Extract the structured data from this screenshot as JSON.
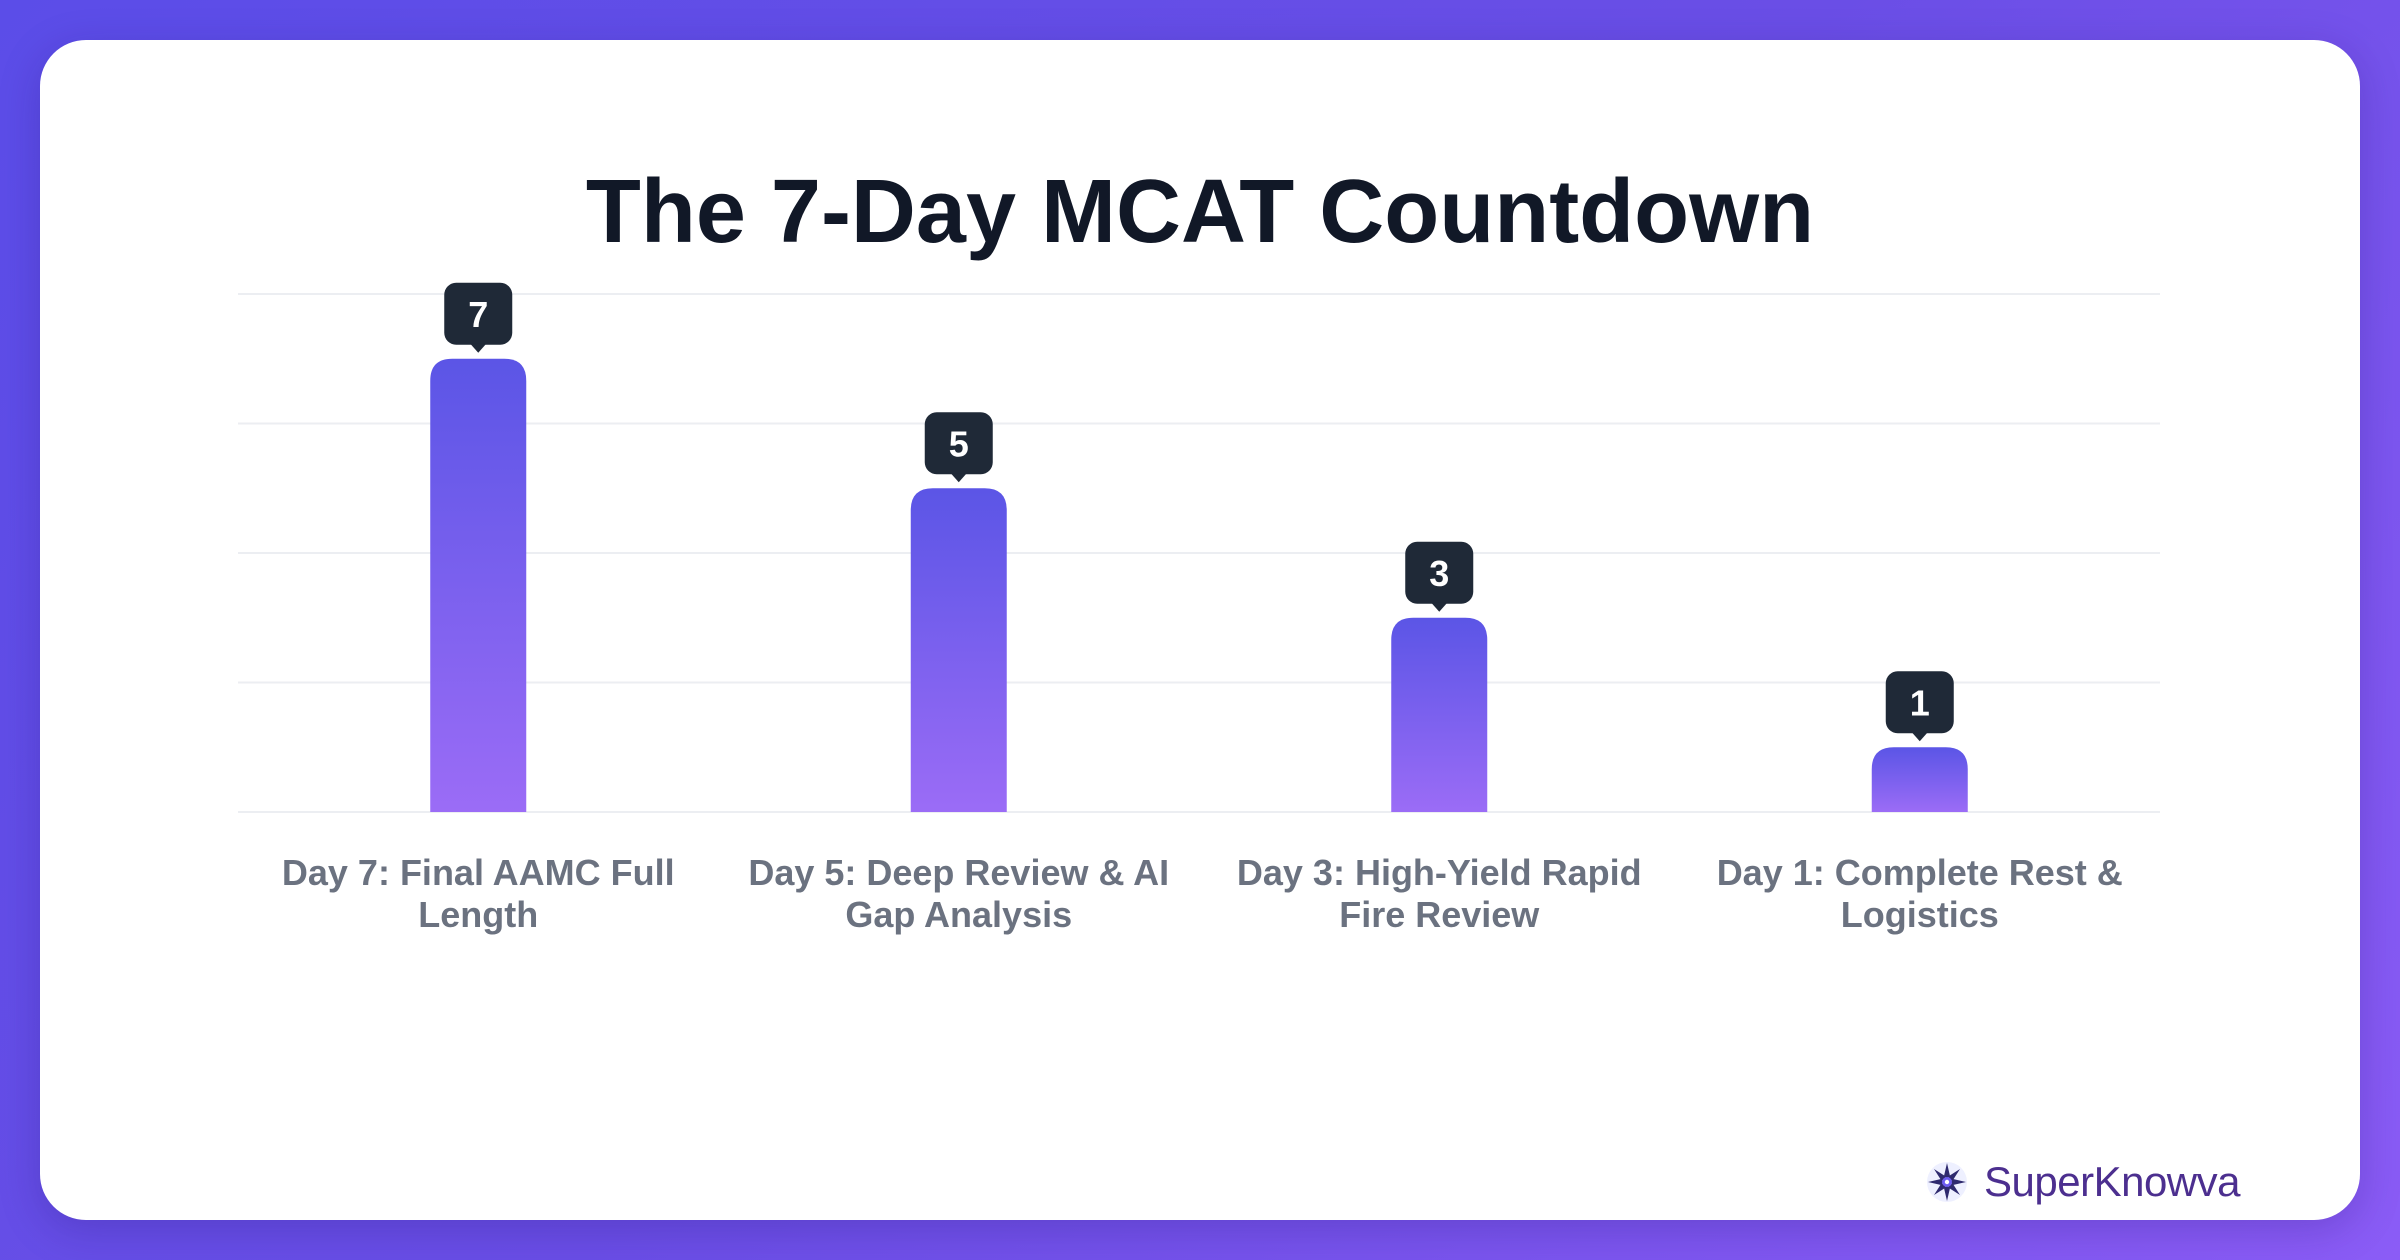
{
  "chart_data": {
    "type": "bar",
    "title": "The 7-Day MCAT Countdown",
    "categories": [
      "Day 7: Final AAMC Full Length",
      "Day 5: Deep Review & AI Gap Analysis",
      "Day 3: High-Yield Rapid Fire Review",
      "Day 1: Complete Rest & Logistics"
    ],
    "values": [
      7,
      5,
      3,
      1
    ],
    "data_labels": [
      "7",
      "5",
      "3",
      "1"
    ],
    "ylim": [
      0,
      8
    ],
    "grid": true,
    "xlabel": "",
    "ylabel": "",
    "bar_color_top": "#5b55e6",
    "bar_color_bottom": "#9b6cf6",
    "label_bubble_color": "#1f2937"
  },
  "brand": {
    "name": "SuperKnowva",
    "icon": "star-burst-logo-icon"
  },
  "colors": {
    "background_start": "#5b4de8",
    "background_end": "#8b5cf6",
    "card": "#ffffff",
    "title": "#111827",
    "tick_label": "#6b7280",
    "brand_text": "#4c2f8f"
  }
}
